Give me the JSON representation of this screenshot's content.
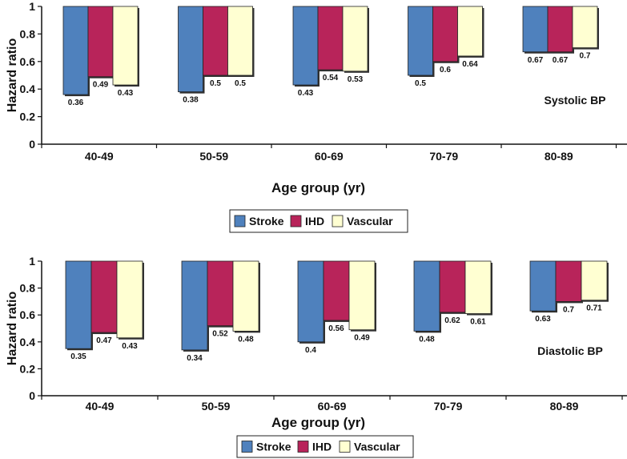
{
  "chart_data": [
    {
      "type": "bar",
      "categories": [
        "40-49",
        "50-59",
        "60-69",
        "70-79",
        "80-89"
      ],
      "series": [
        {
          "name": "Stroke",
          "color": "#4f81bd",
          "values": [
            0.36,
            0.38,
            0.43,
            0.5,
            0.67
          ],
          "labels": [
            "0.36",
            "0.38",
            "0.43",
            "0.5",
            "0.67"
          ]
        },
        {
          "name": "IHD",
          "color": "#b8245a",
          "values": [
            0.49,
            0.5,
            0.54,
            0.6,
            0.67
          ],
          "labels": [
            "0.49",
            "0.5",
            "0.54",
            "0.6",
            "0.67"
          ]
        },
        {
          "name": "Vascular",
          "color": "#ffffd2",
          "values": [
            0.43,
            0.5,
            0.53,
            0.64,
            0.7
          ],
          "labels": [
            "0.43",
            "0.5",
            "0.53",
            "0.64",
            "0.7"
          ]
        }
      ],
      "baseline": 1,
      "ylim": [
        0,
        1
      ],
      "yticks": [
        "0",
        "0.2",
        "0.4",
        "0.6",
        "0.8",
        "1"
      ],
      "xlabel": "Age group (yr)",
      "ylabel": "Hazard ratio",
      "annotation": "Systolic BP",
      "legend": [
        "Stroke",
        "IHD",
        "Vascular"
      ],
      "legend_position": "bottom-center"
    },
    {
      "type": "bar",
      "categories": [
        "40-49",
        "50-59",
        "60-69",
        "70-79",
        "80-89"
      ],
      "series": [
        {
          "name": "Stroke",
          "color": "#4f81bd",
          "values": [
            0.35,
            0.34,
            0.4,
            0.48,
            0.63
          ],
          "labels": [
            "0.35",
            "0.34",
            "0.4",
            "0.48",
            "0.63"
          ]
        },
        {
          "name": "IHD",
          "color": "#b8245a",
          "values": [
            0.47,
            0.52,
            0.56,
            0.62,
            0.7
          ],
          "labels": [
            "0.47",
            "0.52",
            "0.56",
            "0.62",
            "0.7"
          ]
        },
        {
          "name": "Vascular",
          "color": "#ffffd2",
          "values": [
            0.43,
            0.48,
            0.49,
            0.61,
            0.71
          ],
          "labels": [
            "0.43",
            "0.48",
            "0.49",
            "0.61",
            "0.71"
          ]
        }
      ],
      "baseline": 1,
      "ylim": [
        0,
        1
      ],
      "yticks": [
        "0",
        "0.2",
        "0.4",
        "0.6",
        "0.8",
        "1"
      ],
      "xlabel": "Age group (yr)",
      "ylabel": "Hazard ratio",
      "annotation": "Diastolic BP",
      "legend": [
        "Stroke",
        "IHD",
        "Vascular"
      ],
      "legend_position": "bottom-center"
    }
  ]
}
